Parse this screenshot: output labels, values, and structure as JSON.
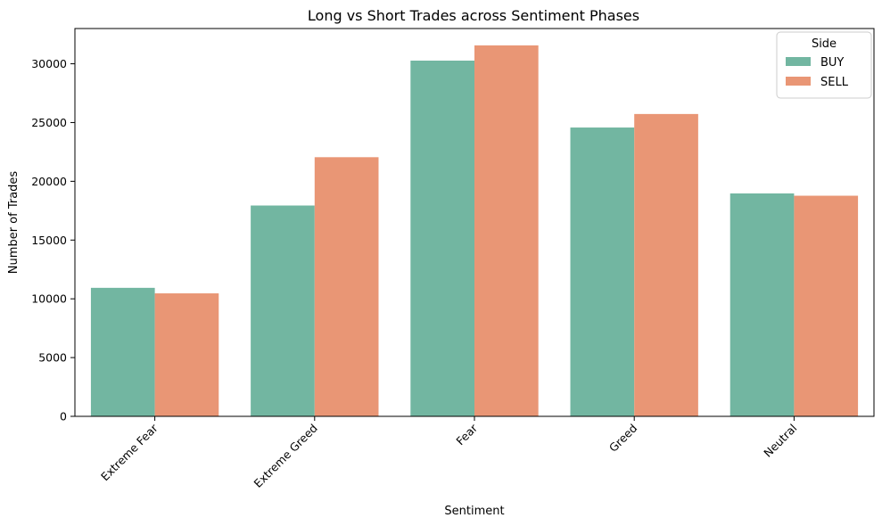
{
  "chart_data": {
    "type": "bar",
    "title": "Long vs Short Trades across Sentiment Phases",
    "xlabel": "Sentiment",
    "ylabel": "Number of Trades",
    "categories": [
      "Extreme Fear",
      "Extreme Greed",
      "Fear",
      "Greed",
      "Neutral"
    ],
    "series": [
      {
        "name": "BUY",
        "color": "#72b6a1",
        "values": [
          10935,
          17940,
          30270,
          24576,
          18969
        ]
      },
      {
        "name": "SELL",
        "color": "#e99675",
        "values": [
          10465,
          22052,
          31567,
          25727,
          18773
        ]
      }
    ],
    "ylim": [
      0,
      33000
    ],
    "yticks": [
      0,
      5000,
      10000,
      15000,
      20000,
      25000,
      30000
    ],
    "legend": {
      "title": "Side",
      "position": "top-right"
    },
    "grid": false
  }
}
